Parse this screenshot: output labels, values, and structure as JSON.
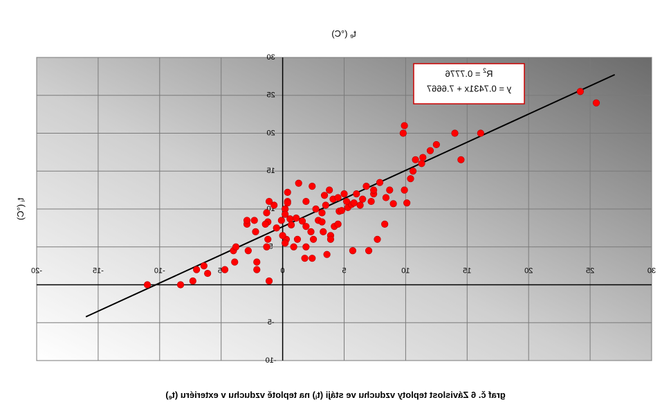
{
  "chart_data": {
    "type": "scatter",
    "title": "graf č. 6 Závislost teploty vzduchu ve stáji (ti) na teplotě vzduchu v exteriéru (te)",
    "caption_main": "graf č. 6 Závislost teploty vzduchu ve stáji (t",
    "caption_sub1": "i",
    "caption_mid": ") na teplotě vzduchu v exteriéru (t",
    "caption_sub2": "e",
    "caption_end": ")",
    "xlabel": "te (°C)",
    "xlabel_main": "t",
    "xlabel_sub": "e",
    "xlabel_unit": " (°C)",
    "ylabel": "ti (°C)",
    "ylabel_main": "t",
    "ylabel_sub": "i",
    "ylabel_unit": " (°C)",
    "xlim": [
      -20,
      30
    ],
    "ylim": [
      -10,
      30
    ],
    "x_ticks": [
      "-20",
      "-15",
      "-10",
      "-5",
      "0",
      "5",
      "10",
      "15",
      "20",
      "25",
      "30"
    ],
    "y_ticks": [
      "-10",
      "-5",
      "0",
      "5",
      "10",
      "15",
      "20",
      "25",
      "30"
    ],
    "grid": true,
    "marker_color": "#ff0000",
    "line_color": "#000000",
    "equation": "y = 0.7431x + 7.6667",
    "r2_main": "R",
    "r2_sup": "2",
    "r2_value": " = 0.7776",
    "trendline": {
      "slope": 0.7431,
      "intercept": 7.6667,
      "x_range": [
        -16,
        27
      ]
    },
    "series": [
      {
        "points": [
          [
            -11,
            0
          ],
          [
            -8.3,
            0
          ],
          [
            -7.3,
            0.5
          ],
          [
            -6.1,
            1.5
          ],
          [
            -7,
            2
          ],
          [
            -6.4,
            2.5
          ],
          [
            -4.7,
            2
          ],
          [
            -3.9,
            3
          ],
          [
            -2.1,
            2
          ],
          [
            -2.1,
            3
          ],
          [
            -1.1,
            0.5
          ],
          [
            -2.8,
            4.5
          ],
          [
            -4,
            4.5
          ],
          [
            -3.8,
            5
          ],
          [
            -1.3,
            5
          ],
          [
            -1.2,
            6
          ],
          [
            -2.2,
            7
          ],
          [
            -2.9,
            8
          ],
          [
            -2.9,
            8.5
          ],
          [
            -2.3,
            8.5
          ],
          [
            -1.2,
            8.3
          ],
          [
            -1.4,
            8
          ],
          [
            -1.3,
            9.5
          ],
          [
            -0.7,
            10.5
          ],
          [
            -1.1,
            11
          ],
          [
            0.4,
            11
          ],
          [
            1.9,
            11
          ],
          [
            0.2,
            10
          ],
          [
            0.6,
            8.7
          ],
          [
            0.7,
            7.9
          ],
          [
            1.1,
            8.8
          ],
          [
            1.6,
            8.4
          ],
          [
            1.9,
            7.7
          ],
          [
            2.3,
            7
          ],
          [
            2.9,
            8.5
          ],
          [
            3.2,
            8.3
          ],
          [
            2.7,
            10
          ],
          [
            3.5,
            10.5
          ],
          [
            3.2,
            9.5
          ],
          [
            4.2,
            7.7
          ],
          [
            4.5,
            8
          ],
          [
            4.6,
            9.7
          ],
          [
            4.8,
            9.8
          ],
          [
            5.3,
            10.2
          ],
          [
            5.6,
            10.6
          ],
          [
            5.2,
            11
          ],
          [
            4.1,
            11.3
          ],
          [
            3.4,
            11.8
          ],
          [
            3.8,
            12.5
          ],
          [
            2.4,
            13
          ],
          [
            1.3,
            13.4
          ],
          [
            0.4,
            12.2
          ],
          [
            0.4,
            10.8
          ],
          [
            6.5,
            11.3
          ],
          [
            7.2,
            11
          ],
          [
            7.4,
            12
          ],
          [
            7.4,
            12.5
          ],
          [
            6.8,
            13
          ],
          [
            8.4,
            11.5
          ],
          [
            7.9,
            13.5
          ],
          [
            6,
            12
          ],
          [
            5,
            12
          ],
          [
            4.5,
            11.5
          ],
          [
            5.8,
            10.8
          ],
          [
            6.3,
            10.5
          ],
          [
            3.3,
            7
          ],
          [
            3.9,
            6.5
          ],
          [
            3.9,
            6
          ],
          [
            2.5,
            6
          ],
          [
            1.9,
            5
          ],
          [
            0.3,
            6
          ],
          [
            0.2,
            5.5
          ],
          [
            0.9,
            5
          ],
          [
            1.2,
            6
          ],
          [
            0,
            6.5
          ],
          [
            -0.5,
            7.5
          ],
          [
            -0.1,
            8.5
          ],
          [
            0.2,
            9.3
          ],
          [
            1.8,
            3.5
          ],
          [
            2.4,
            3.5
          ],
          [
            3.6,
            4
          ],
          [
            5.7,
            4.5
          ],
          [
            7,
            4.5
          ],
          [
            7.7,
            6
          ],
          [
            8.3,
            8
          ],
          [
            9,
            10.7
          ],
          [
            10.1,
            10.8
          ],
          [
            9.9,
            12.5
          ],
          [
            8.7,
            12.5
          ],
          [
            10.4,
            14
          ],
          [
            10.6,
            15
          ],
          [
            10.8,
            16.5
          ],
          [
            11.3,
            16
          ],
          [
            11.4,
            16.8
          ],
          [
            12,
            17.7
          ],
          [
            12.5,
            18.5
          ],
          [
            14.5,
            16.5
          ],
          [
            14,
            20
          ],
          [
            16.1,
            20
          ],
          [
            9.8,
            20
          ],
          [
            9.9,
            21
          ],
          [
            25.5,
            24
          ],
          [
            24.2,
            25.5
          ]
        ]
      }
    ]
  }
}
